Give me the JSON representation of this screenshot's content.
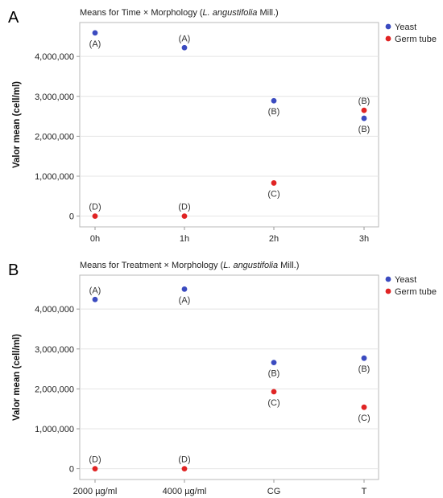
{
  "colors": {
    "yeast": "#3b4bc0",
    "germ_tube": "#e02424"
  },
  "chart_data": [
    {
      "type": "scatter",
      "panel_label": "A",
      "title_prefix": "Means for Time × Morphology  (",
      "title_italic": "L. angustifolia",
      "title_suffix": " Mill.)",
      "xlabel": "",
      "ylabel": "Valor mean (cell/ml)",
      "categories": [
        "0h",
        "1h",
        "2h",
        "3h"
      ],
      "ylim": [
        -270000,
        4850000
      ],
      "yticks": [
        0,
        1000000,
        2000000,
        3000000,
        4000000
      ],
      "ytick_labels": [
        "0",
        "1,000,000",
        "2,000,000",
        "3,000,000",
        "4,000,000"
      ],
      "grid": true,
      "legend_position": "right",
      "series": [
        {
          "name": "Yeast",
          "color": "#3b4bc0",
          "values": [
            4590000,
            4220000,
            2890000,
            2450000
          ],
          "labels": [
            "(A)",
            "(A)",
            "(B)",
            "(B)"
          ],
          "label_pos": [
            "below",
            "above",
            "below",
            "below"
          ]
        },
        {
          "name": "Germ tube",
          "color": "#e02424",
          "values": [
            0,
            0,
            830000,
            2650000
          ],
          "labels": [
            "(D)",
            "(D)",
            "(C)",
            "(B)"
          ],
          "label_pos": [
            "above",
            "above",
            "below",
            "above"
          ]
        }
      ]
    },
    {
      "type": "scatter",
      "panel_label": "B",
      "title_prefix": "Means for Treatment × Morphology  (",
      "title_italic": "L. angustifolia",
      "title_suffix": " Mill.)",
      "xlabel": "",
      "ylabel": "Valor mean (cell/ml)",
      "categories": [
        "2000 µg/ml",
        "4000 µg/ml",
        "CG",
        "T"
      ],
      "ylim": [
        -270000,
        4850000
      ],
      "yticks": [
        0,
        1000000,
        2000000,
        3000000,
        4000000
      ],
      "ytick_labels": [
        "0",
        "1,000,000",
        "2,000,000",
        "3,000,000",
        "4,000,000"
      ],
      "grid": true,
      "legend_position": "right",
      "series": [
        {
          "name": "Yeast",
          "color": "#3b4bc0",
          "values": [
            4240000,
            4500000,
            2660000,
            2770000
          ],
          "labels": [
            "(A)",
            "(A)",
            "(B)",
            "(B)"
          ],
          "label_pos": [
            "above",
            "below",
            "below",
            "below"
          ]
        },
        {
          "name": "Germ tube",
          "color": "#e02424",
          "values": [
            0,
            0,
            1930000,
            1540000
          ],
          "labels": [
            "(D)",
            "(D)",
            "(C)",
            "(C)"
          ],
          "label_pos": [
            "above",
            "above",
            "below",
            "below"
          ]
        }
      ]
    }
  ]
}
